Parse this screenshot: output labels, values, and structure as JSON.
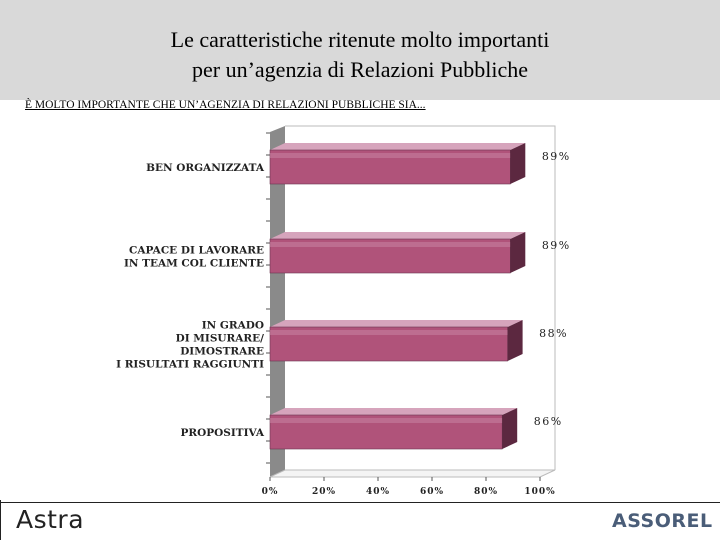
{
  "header": {
    "title_line1": "Le caratteristiche ritenute molto importanti",
    "title_line2": "per un’agenzia di Relazioni Pubbliche",
    "subtitle": "È MOLTO IMPORTANTE CHE UN’AGENZIA DI RELAZIONI PUBBLICHE SIA..."
  },
  "footer": {
    "left_logo": "Astra",
    "right_logo": "ASSOREL"
  },
  "colors": {
    "bar_fill": "#b0537a",
    "bar_top": "#d6a4bc",
    "bar_side": "#5c2840",
    "wall": "#8a8a8a",
    "background": "#ffffff"
  },
  "chart_data": {
    "type": "bar",
    "orientation": "horizontal",
    "style": "3d",
    "categories": [
      [
        "BEN ORGANIZZATA"
      ],
      [
        "CAPACE DI LAVORARE",
        "IN TEAM COL CLIENTE"
      ],
      [
        "IN GRADO",
        "DI MISURARE/",
        "DIMOSTRARE",
        "I RISULTATI RAGGIUNTI"
      ],
      [
        "PROPOSITIVA"
      ]
    ],
    "values": [
      89,
      89,
      88,
      86
    ],
    "data_labels": [
      "89%",
      "89%",
      "88%",
      "86%"
    ],
    "xlim": [
      0,
      100
    ],
    "x_ticks": [
      "0%",
      "20%",
      "40%",
      "60%",
      "80%",
      "100%"
    ],
    "grid": false
  }
}
